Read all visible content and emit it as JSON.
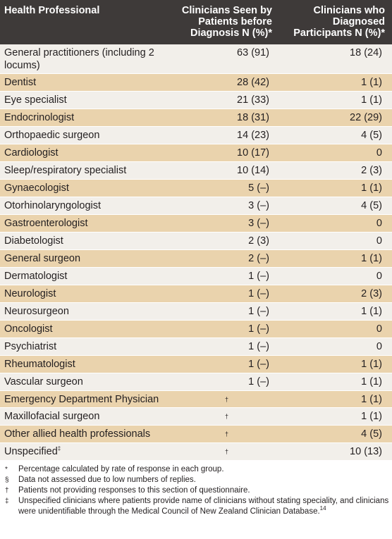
{
  "table": {
    "headers": [
      "Health Professional",
      "Clinicians Seen by Patients before Diagnosis N (%)*",
      "Clinicians who Diagnosed Participants N (%)*"
    ],
    "rows": [
      {
        "name": "General practitioners (including 2 locums)",
        "seen": "63 (91)",
        "diag": "18 (24)"
      },
      {
        "name": "Dentist",
        "seen": "28 (42)",
        "diag": "1 (1)"
      },
      {
        "name": "Eye specialist",
        "seen": "21 (33)",
        "diag": "1 (1)"
      },
      {
        "name": "Endocrinologist",
        "seen": "18 (31)",
        "diag": "22 (29)"
      },
      {
        "name": "Orthopaedic surgeon",
        "seen": "14 (23)",
        "diag": "4 (5)"
      },
      {
        "name": "Cardiologist",
        "seen": "10 (17)",
        "diag": "0"
      },
      {
        "name": "Sleep/respiratory specialist",
        "seen": "10 (14)",
        "diag": "2 (3)"
      },
      {
        "name": "Gynaecologist",
        "seen": "5 (–)",
        "diag": "1 (1)"
      },
      {
        "name": "Otorhinolaryngologist",
        "seen": "3 (–)",
        "diag": "4 (5)"
      },
      {
        "name": "Gastroenterologist",
        "seen": "3 (–)",
        "diag": "0"
      },
      {
        "name": "Diabetologist",
        "seen": "2 (3)",
        "diag": "0"
      },
      {
        "name": "General surgeon",
        "seen": "2 (–)",
        "diag": "1 (1)"
      },
      {
        "name": "Dermatologist",
        "seen": "1 (–)",
        "diag": "0"
      },
      {
        "name": "Neurologist",
        "seen": "1 (–)",
        "diag": "2 (3)"
      },
      {
        "name": "Neurosurgeon",
        "seen": "1 (–)",
        "diag": "1 (1)"
      },
      {
        "name": "Oncologist",
        "seen": "1 (–)",
        "diag": "0"
      },
      {
        "name": "Psychiatrist",
        "seen": "1 (–)",
        "diag": "0"
      },
      {
        "name": "Rheumatologist",
        "seen": "1 (–)",
        "diag": "1 (1)"
      },
      {
        "name": "Vascular surgeon",
        "seen": "1 (–)",
        "diag": "1 (1)"
      },
      {
        "name": "Emergency Department Physician",
        "seen": "†",
        "diag": "1 (1)"
      },
      {
        "name": "Maxillofacial surgeon",
        "seen": "†",
        "diag": "1 (1)"
      },
      {
        "name": "Other allied health professionals",
        "seen": "†",
        "diag": "4 (5)"
      },
      {
        "name": "Unspecified",
        "name_sup": "‡",
        "seen": "†",
        "diag": "10 (13)"
      }
    ]
  },
  "footnotes": [
    {
      "symbol": "*",
      "text": "Percentage calculated by rate of response in each group."
    },
    {
      "symbol": "§",
      "text": "Data not assessed due to low numbers of replies."
    },
    {
      "symbol": "†",
      "text": "Patients not providing responses to this section of questionnaire."
    },
    {
      "symbol": "‡",
      "text": "Unspecified clinicians where patients provide name of clinicians without stating speciality, and clinicians were unidentifiable through the Medical Council of New Zealand Clinician Database.",
      "ref": "14"
    }
  ],
  "colors": {
    "header_bg": "#3e3a39",
    "row_light": "#f2efea",
    "row_tan": "#ead3ad"
  }
}
